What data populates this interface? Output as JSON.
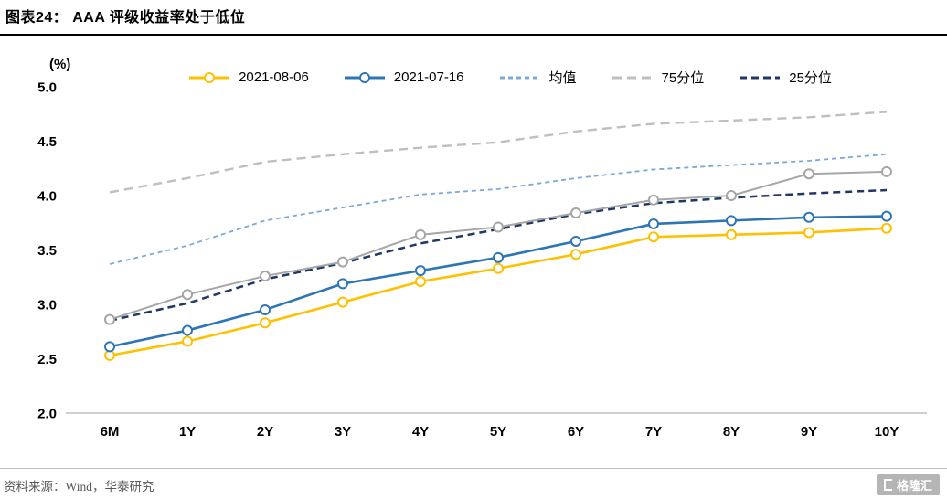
{
  "header": {
    "title": "图表24： AAA 评级收益率处于低位"
  },
  "footer": {
    "source": "资料来源：Wind，华泰研究",
    "logo_text": "格隆汇"
  },
  "colors": {
    "axis_line": "#bfbfbf",
    "title_rule": "#000000",
    "footer_rule": "#bfbfbf",
    "text": "#000000",
    "source_text": "#595959"
  },
  "chart_data": {
    "type": "line",
    "title": "AAA 评级收益率处于低位",
    "unit_label": "(%)",
    "xlabel": "",
    "ylabel": "(%)",
    "categories": [
      "6M",
      "1Y",
      "2Y",
      "3Y",
      "4Y",
      "5Y",
      "6Y",
      "7Y",
      "8Y",
      "9Y",
      "10Y"
    ],
    "ylim": [
      2.0,
      5.0
    ],
    "ytick_step": 0.5,
    "grid": false,
    "legend_position": "top",
    "series": [
      {
        "id": "s-2021-08-06",
        "name": "2021-08-06",
        "color": "#FFC000",
        "style": "solid",
        "marker": true,
        "width": 2.6,
        "values": [
          2.53,
          2.66,
          2.83,
          3.02,
          3.21,
          3.33,
          3.46,
          3.62,
          3.64,
          3.66,
          3.7
        ]
      },
      {
        "id": "s-2021-07-16",
        "name": "2021-07-16",
        "color": "#2E75B6",
        "style": "solid",
        "marker": true,
        "width": 2.6,
        "values": [
          2.61,
          2.76,
          2.95,
          3.19,
          3.31,
          3.43,
          3.58,
          3.74,
          3.77,
          3.8,
          3.81
        ]
      },
      {
        "id": "s-mean",
        "name": "均值",
        "color": "#7CA9D6",
        "style": "dashed",
        "dash": "5 4",
        "marker": false,
        "width": 1.8,
        "values": [
          3.37,
          3.54,
          3.77,
          3.89,
          4.01,
          4.06,
          4.16,
          4.24,
          4.28,
          4.32,
          4.38
        ]
      },
      {
        "id": "s-p75",
        "name": "75分位",
        "color": "#BFBFBF",
        "style": "dashed",
        "dash": "10 6",
        "marker": false,
        "width": 2.4,
        "values": [
          4.03,
          4.16,
          4.31,
          4.38,
          4.44,
          4.49,
          4.59,
          4.66,
          4.69,
          4.72,
          4.77
        ]
      },
      {
        "id": "s-p25",
        "name": "25分位",
        "color": "#1F3864",
        "style": "dashed",
        "dash": "8 5",
        "marker": false,
        "width": 2.5,
        "values": [
          2.85,
          3.01,
          3.23,
          3.38,
          3.56,
          3.69,
          3.83,
          3.93,
          3.98,
          4.02,
          4.05
        ]
      },
      {
        "id": "s-gray-unlabeled",
        "name": "",
        "in_legend": false,
        "color": "#A6A6A6",
        "style": "solid",
        "marker": true,
        "width": 2.0,
        "values": [
          2.86,
          3.09,
          3.26,
          3.39,
          3.64,
          3.71,
          3.84,
          3.96,
          4.0,
          4.2,
          4.22
        ]
      }
    ]
  }
}
